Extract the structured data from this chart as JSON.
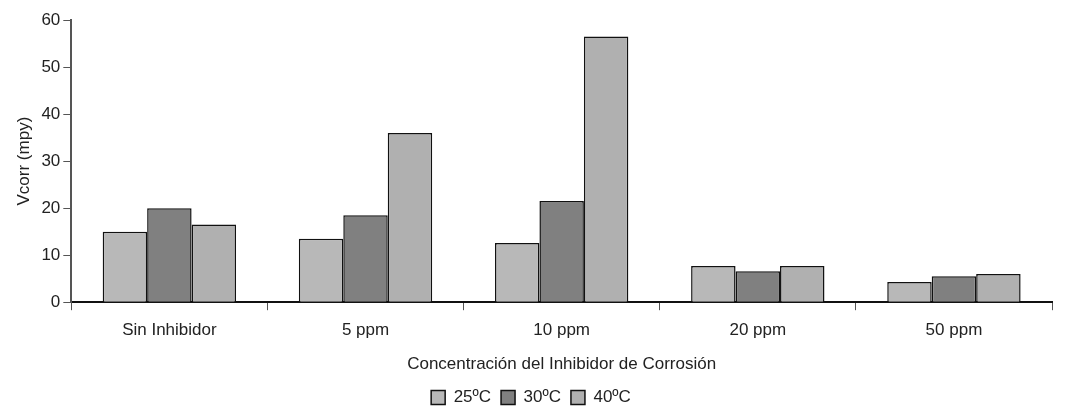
{
  "chart_data": {
    "type": "bar",
    "xlabel": "Concentración del Inhibidor de Corrosión",
    "ylabel": "Vcorr (mpy)",
    "categories": [
      "Sin Inhibidor",
      "5 ppm",
      "10 ppm",
      "20 ppm",
      "50 ppm"
    ],
    "series": [
      {
        "name": "25ºC",
        "color": "#b8b8b8",
        "values": [
          15,
          13.5,
          12.6,
          7.7,
          4.3
        ]
      },
      {
        "name": "30ºC",
        "color": "#808080",
        "values": [
          20,
          18.5,
          21.5,
          6.6,
          5.5
        ]
      },
      {
        "name": "40ºC",
        "color": "#b0b0b0",
        "values": [
          16.5,
          36,
          56.5,
          7.7,
          6
        ]
      }
    ],
    "ylim": [
      0,
      60
    ],
    "yticks": [
      0,
      10,
      20,
      30,
      40,
      50,
      60
    ],
    "grid": false,
    "legend": "bottom"
  }
}
